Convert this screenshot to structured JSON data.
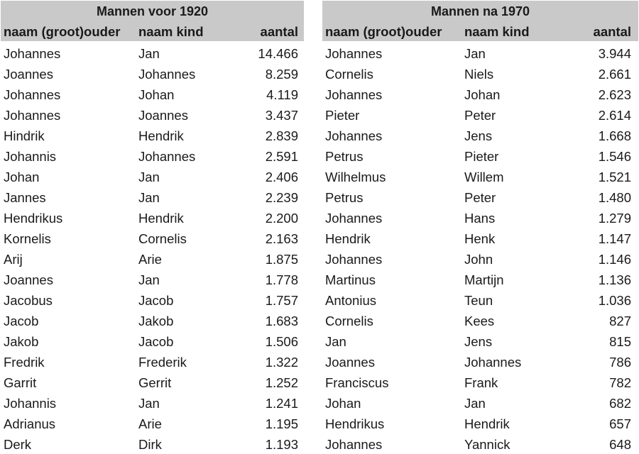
{
  "tables": [
    {
      "title": "Mannen voor 1920",
      "headers": [
        "naam (groot)ouder",
        "naam kind",
        "aantal"
      ],
      "rows": [
        [
          "Johannes",
          "Jan",
          "14.466"
        ],
        [
          "Joannes",
          "Johannes",
          "8.259"
        ],
        [
          "Johannes",
          "Johan",
          "4.119"
        ],
        [
          "Johannes",
          "Joannes",
          "3.437"
        ],
        [
          "Hindrik",
          "Hendrik",
          "2.839"
        ],
        [
          "Johannis",
          "Johannes",
          "2.591"
        ],
        [
          "Johan",
          "Jan",
          "2.406"
        ],
        [
          "Jannes",
          "Jan",
          "2.239"
        ],
        [
          "Hendrikus",
          "Hendrik",
          "2.200"
        ],
        [
          "Kornelis",
          "Cornelis",
          "2.163"
        ],
        [
          "Arij",
          "Arie",
          "1.875"
        ],
        [
          "Joannes",
          "Jan",
          "1.778"
        ],
        [
          "Jacobus",
          "Jacob",
          "1.757"
        ],
        [
          "Jacob",
          "Jakob",
          "1.683"
        ],
        [
          "Jakob",
          "Jacob",
          "1.506"
        ],
        [
          "Fredrik",
          "Frederik",
          "1.322"
        ],
        [
          "Garrit",
          "Gerrit",
          "1.252"
        ],
        [
          "Johannis",
          "Jan",
          "1.241"
        ],
        [
          "Adrianus",
          "Arie",
          "1.195"
        ],
        [
          "Derk",
          "Dirk",
          "1.193"
        ]
      ]
    },
    {
      "title": "Mannen na 1970",
      "headers": [
        "naam (groot)ouder",
        "naam kind",
        "aantal"
      ],
      "rows": [
        [
          "Johannes",
          "Jan",
          "3.944"
        ],
        [
          "Cornelis",
          "Niels",
          "2.661"
        ],
        [
          "Johannes",
          "Johan",
          "2.623"
        ],
        [
          "Pieter",
          "Peter",
          "2.614"
        ],
        [
          "Johannes",
          "Jens",
          "1.668"
        ],
        [
          "Petrus",
          "Pieter",
          "1.546"
        ],
        [
          "Wilhelmus",
          "Willem",
          "1.521"
        ],
        [
          "Petrus",
          "Peter",
          "1.480"
        ],
        [
          "Johannes",
          "Hans",
          "1.279"
        ],
        [
          "Hendrik",
          "Henk",
          "1.147"
        ],
        [
          "Johannes",
          "John",
          "1.146"
        ],
        [
          "Martinus",
          "Martijn",
          "1.136"
        ],
        [
          "Antonius",
          "Teun",
          "1.036"
        ],
        [
          "Cornelis",
          "Kees",
          "827"
        ],
        [
          "Jan",
          "Jens",
          "815"
        ],
        [
          "Joannes",
          "Johannes",
          "786"
        ],
        [
          "Franciscus",
          "Frank",
          "782"
        ],
        [
          "Johan",
          "Jan",
          "682"
        ],
        [
          "Hendrikus",
          "Hendrik",
          "657"
        ],
        [
          "Johannes",
          "Yannick",
          "648"
        ]
      ]
    }
  ],
  "colors": {
    "header_bg": "#c9c9c9",
    "text": "#1a1a1a"
  }
}
